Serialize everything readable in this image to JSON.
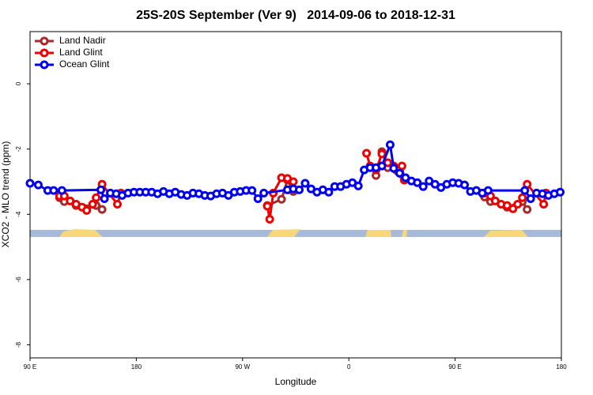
{
  "chart_data": {
    "type": "line",
    "title": "25S-20S September (Ver 9)   2014-09-06 to 2018-12-31",
    "x_label": "Longitude",
    "y_label": "XCO2 - MLO trend (ppm)",
    "xlim": [
      90,
      540
    ],
    "xticks": [
      {
        "value": 90,
        "label": "90 E"
      },
      {
        "value": 180,
        "label": "180"
      },
      {
        "value": 270,
        "label": "90 W"
      },
      {
        "value": 360,
        "label": "0"
      },
      {
        "value": 450,
        "label": "90 E"
      },
      {
        "value": 540,
        "label": "180"
      }
    ],
    "ylim": [
      -8.4,
      1.6
    ],
    "yticks": [
      0,
      -2,
      -4,
      -6,
      -8
    ],
    "grid": false,
    "legend": "top-left",
    "series": [
      {
        "name": "Land Nadir",
        "color": "#a52a2a",
        "x": [
          115,
          119,
          129,
          138,
          146,
          151,
          null,
          291,
          303,
          308,
          313,
          null,
          383,
          388,
          393,
          407,
          null,
          475,
          480,
          494,
          507,
          511
        ],
        "values": [
          -3.49,
          -3.61,
          -3.73,
          -3.83,
          -3.73,
          -3.85,
          null,
          -3.73,
          -3.54,
          -2.95,
          -3.3,
          null,
          -2.81,
          -2.08,
          -2.57,
          -2.95,
          null,
          -3.47,
          -3.61,
          -3.78,
          -3.61,
          -3.85
        ]
      },
      {
        "name": "Land Glint",
        "color": "#ee0000",
        "x": [
          115,
          119,
          124,
          129,
          134,
          138,
          143,
          146,
          151,
          164,
          167,
          null,
          291,
          293,
          296,
          303,
          308,
          313,
          null,
          375,
          378,
          383,
          388,
          393,
          398,
          405,
          407,
          null,
          475,
          480,
          484,
          489,
          494,
          499,
          503,
          507,
          511,
          525,
          527
        ],
        "values": [
          -3.44,
          -3.44,
          -3.59,
          -3.69,
          -3.78,
          -3.88,
          -3.69,
          -3.49,
          -3.08,
          -3.69,
          -3.35,
          null,
          -3.75,
          -4.15,
          -3.35,
          -2.88,
          -2.9,
          -3.0,
          null,
          -2.13,
          -2.52,
          -2.64,
          -2.15,
          -2.42,
          -2.52,
          -2.52,
          -2.95,
          null,
          -3.35,
          -3.44,
          -3.59,
          -3.69,
          -3.73,
          -3.83,
          -3.69,
          -3.49,
          -3.08,
          -3.69,
          -3.35
        ]
      },
      {
        "name": "Ocean Glint",
        "color": "#0000ee",
        "x": [
          90,
          97,
          105,
          110,
          117,
          150,
          153,
          158,
          163,
          168,
          173,
          178,
          183,
          188,
          193,
          198,
          203,
          208,
          213,
          218,
          223,
          228,
          233,
          238,
          243,
          248,
          253,
          258,
          263,
          268,
          273,
          278,
          283,
          288,
          308,
          313,
          318,
          323,
          328,
          333,
          338,
          343,
          348,
          353,
          358,
          363,
          368,
          373,
          378,
          383,
          388,
          395,
          398,
          403,
          408,
          413,
          418,
          423,
          428,
          433,
          438,
          443,
          448,
          453,
          458,
          463,
          468,
          473,
          478,
          509,
          514,
          519,
          524,
          529,
          534,
          539
        ],
        "values": [
          -3.05,
          -3.1,
          -3.27,
          -3.27,
          -3.27,
          -3.25,
          -3.52,
          -3.35,
          -3.37,
          -3.42,
          -3.35,
          -3.32,
          -3.32,
          -3.32,
          -3.32,
          -3.37,
          -3.3,
          -3.37,
          -3.32,
          -3.39,
          -3.42,
          -3.35,
          -3.37,
          -3.42,
          -3.44,
          -3.37,
          -3.35,
          -3.42,
          -3.32,
          -3.3,
          -3.27,
          -3.27,
          -3.52,
          -3.35,
          -3.25,
          -3.22,
          -3.25,
          -3.05,
          -3.22,
          -3.32,
          -3.25,
          -3.32,
          -3.15,
          -3.15,
          -3.08,
          -3.03,
          -3.13,
          -2.64,
          -2.57,
          -2.57,
          -2.52,
          -1.87,
          -2.59,
          -2.74,
          -2.88,
          -2.98,
          -3.03,
          -3.15,
          -2.98,
          -3.08,
          -3.18,
          -3.08,
          -3.03,
          -3.05,
          -3.1,
          -3.3,
          -3.27,
          -3.35,
          -3.27,
          -3.27,
          -3.52,
          -3.35,
          -3.37,
          -3.42,
          -3.37,
          -3.32
        ]
      }
    ]
  }
}
